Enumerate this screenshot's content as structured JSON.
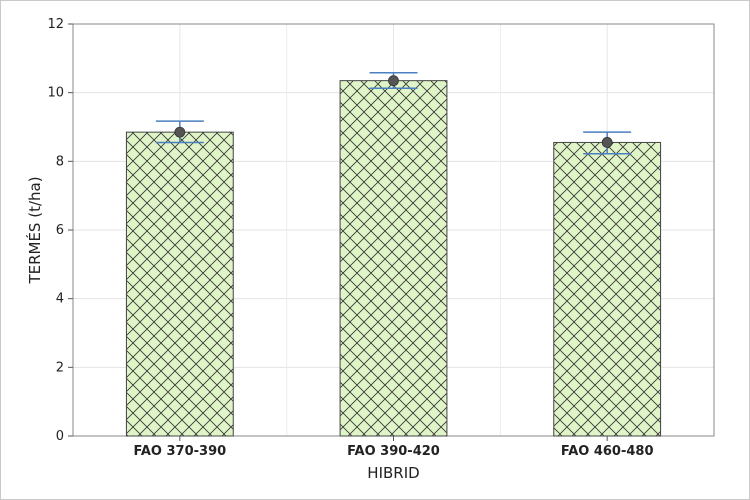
{
  "chart_data": {
    "type": "bar",
    "categories": [
      "FAO 370-390",
      "FAO 390-420",
      "FAO 460-480"
    ],
    "values": [
      8.85,
      10.35,
      8.55
    ],
    "error_bars": [
      {
        "low": 8.55,
        "high": 9.17
      },
      {
        "low": 10.13,
        "high": 10.58
      },
      {
        "low": 8.22,
        "high": 8.85
      }
    ],
    "xlabel": "HIBRID",
    "ylabel": "TERMÉS (t/ha)",
    "ylim": [
      0,
      12
    ],
    "yticks": [
      "0",
      "2",
      "4",
      "6",
      "8",
      "10",
      "12"
    ],
    "grid": true,
    "bar_fill": "#dff5c8",
    "bar_pattern": "crosshatch",
    "hatch_color": "#333333",
    "errorbar_color": "#4a7fc1",
    "mean_marker_color": "#555555"
  }
}
